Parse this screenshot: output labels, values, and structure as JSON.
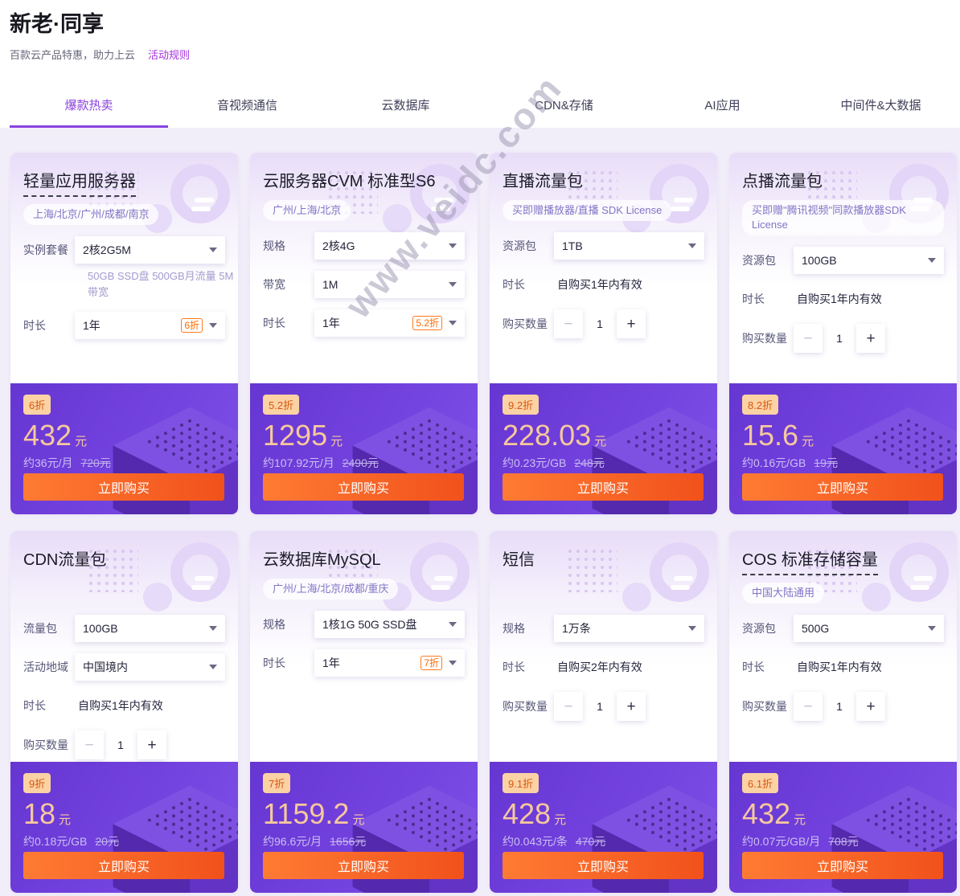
{
  "page": {
    "title": "新老·同享",
    "subtitle": "百款云产品特惠，助力上云",
    "rules_link": "活动规则",
    "watermark": "www.veidc.com"
  },
  "labels": {
    "buy": "立即购买",
    "minus": "−",
    "plus": "+"
  },
  "colors": {
    "accent": "#8a42e0",
    "link": "#a531dd",
    "discount_badge_bg": "#fbd2a4",
    "discount_badge_text": "#d9560e",
    "price_text": "#f6c89d",
    "buy_gradient": [
      "#ff7b33",
      "#f1511b"
    ],
    "price_panel": [
      "#6636d2",
      "#7e4fe8"
    ]
  },
  "tabs": [
    {
      "label": "爆款热卖",
      "active": true
    },
    {
      "label": "音视频通信",
      "active": false
    },
    {
      "label": "云数据库",
      "active": false
    },
    {
      "label": "CDN&存储",
      "active": false
    },
    {
      "label": "AI应用",
      "active": false
    },
    {
      "label": "中间件&大数据",
      "active": false
    }
  ],
  "cards": [
    {
      "name": "lighthouse-app-server",
      "title": "轻量应用服务器",
      "title_dashed": true,
      "tag": "上海/北京/广州/成都/南京",
      "fields": [
        {
          "name": "instance-plan",
          "type": "select",
          "label": "实例套餐",
          "value": "2核2G5M",
          "note": "50GB SSD盘 500GB月流量 5M带宽"
        },
        {
          "name": "duration",
          "type": "select",
          "label": "时长",
          "value": "1年",
          "badge": "6折"
        }
      ],
      "price": {
        "discount": "6折",
        "amount": "432",
        "unit": "元",
        "approx": "约36元/月",
        "original": "720元"
      }
    },
    {
      "name": "cvm-standard-s6",
      "title": "云服务器CVM 标准型S6",
      "title_dashed": false,
      "tag": "广州/上海/北京",
      "fields": [
        {
          "name": "spec",
          "type": "select",
          "label": "规格",
          "value": "2核4G"
        },
        {
          "name": "bandwidth",
          "type": "select",
          "label": "带宽",
          "value": "1M"
        },
        {
          "name": "duration",
          "type": "select",
          "label": "时长",
          "value": "1年",
          "badge": "5.2折"
        }
      ],
      "price": {
        "discount": "5.2折",
        "amount": "1295",
        "unit": "元",
        "approx": "约107.92元/月",
        "original": "2490元"
      }
    },
    {
      "name": "live-traffic-pack",
      "title": "直播流量包",
      "title_dashed": false,
      "tag": "买即赠播放器/直播 SDK License",
      "fields": [
        {
          "name": "resource-pack",
          "type": "select",
          "label": "资源包",
          "value": "1TB"
        },
        {
          "name": "duration",
          "type": "static",
          "label": "时长",
          "value": "自购买1年内有效"
        },
        {
          "name": "quantity",
          "type": "stepper",
          "label": "购买数量",
          "value": "1"
        }
      ],
      "price": {
        "discount": "9.2折",
        "amount": "228.03",
        "unit": "元",
        "approx": "约0.23元/GB",
        "original": "248元"
      }
    },
    {
      "name": "vod-traffic-pack",
      "title": "点播流量包",
      "title_dashed": false,
      "tag": "买即赠\"腾讯视频\"同款播放器SDK License",
      "fields": [
        {
          "name": "resource-pack",
          "type": "select",
          "label": "资源包",
          "value": "100GB"
        },
        {
          "name": "duration",
          "type": "static",
          "label": "时长",
          "value": "自购买1年内有效"
        },
        {
          "name": "quantity",
          "type": "stepper",
          "label": "购买数量",
          "value": "1"
        }
      ],
      "price": {
        "discount": "8.2折",
        "amount": "15.6",
        "unit": "元",
        "approx": "约0.16元/GB",
        "original": "19元"
      }
    },
    {
      "name": "cdn-traffic-pack",
      "title": "CDN流量包",
      "title_dashed": false,
      "tag": "",
      "fields": [
        {
          "name": "traffic-pack",
          "type": "select",
          "label": "流量包",
          "value": "100GB"
        },
        {
          "name": "region",
          "type": "select",
          "label": "活动地域",
          "value": "中国境内"
        },
        {
          "name": "duration",
          "type": "static",
          "label": "时长",
          "value": "自购买1年内有效"
        },
        {
          "name": "quantity",
          "type": "stepper",
          "label": "购买数量",
          "value": "1"
        }
      ],
      "price": {
        "discount": "9折",
        "amount": "18",
        "unit": "元",
        "approx": "约0.18元/GB",
        "original": "20元"
      }
    },
    {
      "name": "mysql-database",
      "title": "云数据库MySQL",
      "title_dashed": false,
      "tag": "广州/上海/北京/成都/重庆",
      "fields": [
        {
          "name": "spec",
          "type": "select",
          "label": "规格",
          "value": "1核1G 50G SSD盘"
        },
        {
          "name": "duration",
          "type": "select",
          "label": "时长",
          "value": "1年",
          "badge": "7折"
        }
      ],
      "price": {
        "discount": "7折",
        "amount": "1159.2",
        "unit": "元",
        "approx": "约96.6元/月",
        "original": "1656元"
      }
    },
    {
      "name": "sms",
      "title": "短信",
      "title_dashed": false,
      "tag": "",
      "fields": [
        {
          "name": "spec",
          "type": "select",
          "label": "规格",
          "value": "1万条"
        },
        {
          "name": "duration",
          "type": "static",
          "label": "时长",
          "value": "自购买2年内有效"
        },
        {
          "name": "quantity",
          "type": "stepper",
          "label": "购买数量",
          "value": "1"
        }
      ],
      "price": {
        "discount": "9.1折",
        "amount": "428",
        "unit": "元",
        "approx": "约0.043元/条",
        "original": "470元"
      }
    },
    {
      "name": "cos-storage",
      "title": "COS 标准存储容量",
      "title_dashed": true,
      "tag": "中国大陆通用",
      "fields": [
        {
          "name": "resource-pack",
          "type": "select",
          "label": "资源包",
          "value": "500G"
        },
        {
          "name": "duration",
          "type": "static",
          "label": "时长",
          "value": "自购买1年内有效"
        },
        {
          "name": "quantity",
          "type": "stepper",
          "label": "购买数量",
          "value": "1"
        }
      ],
      "price": {
        "discount": "6.1折",
        "amount": "432",
        "unit": "元",
        "approx": "约0.07元/GB/月",
        "original": "708元"
      }
    }
  ]
}
